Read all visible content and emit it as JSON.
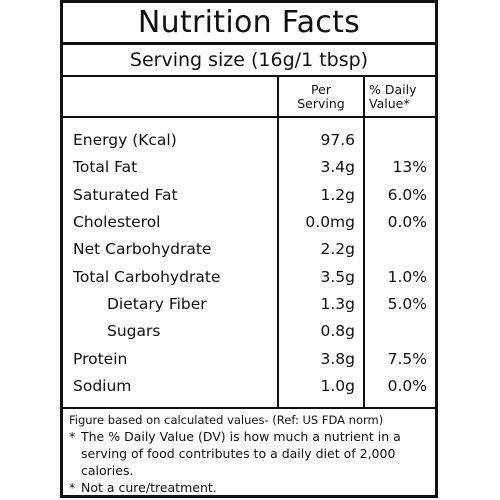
{
  "label": {
    "title": "Nutrition Facts",
    "serving_size": "Serving size (16g/1 tbsp)",
    "header": {
      "per_serving_line1": "Per",
      "per_serving_line2": "Serving",
      "dv_line1": "% Daily",
      "dv_line2": "Value*"
    },
    "rows": [
      {
        "name": "Energy (Kcal)",
        "value": "97.6",
        "dv": ""
      },
      {
        "name": "Total Fat",
        "value": "3.4g",
        "dv": "13%"
      },
      {
        "name": "Saturated Fat",
        "value": "1.2g",
        "dv": "6.0%"
      },
      {
        "name": "Cholesterol",
        "value": "0.0mg",
        "dv": "0.0%"
      },
      {
        "name": "Net Carbohydrate",
        "value": "2.2g",
        "dv": ""
      },
      {
        "name": "Total Carbohydrate",
        "value": "3.5g",
        "dv": "1.0%"
      },
      {
        "name": "Dietary Fiber",
        "value": "1.3g",
        "dv": "5.0%"
      },
      {
        "name": "Sugars",
        "value": "0.8g",
        "dv": ""
      },
      {
        "name": "Protein",
        "value": "3.8g",
        "dv": "7.5%"
      },
      {
        "name": "Sodium",
        "value": "1.0g",
        "dv": "0.0%"
      }
    ],
    "footnotes": {
      "basis": "Figure based on calculated values- (Ref: US FDA norm)",
      "dv_star": "*",
      "dv_note": "The % Daily Value (DV) is how much a nutrient in a serving of food contributes to a daily diet of 2,000 calories.",
      "cure_star": "*",
      "cure_note": "Not a cure/treatment."
    }
  }
}
